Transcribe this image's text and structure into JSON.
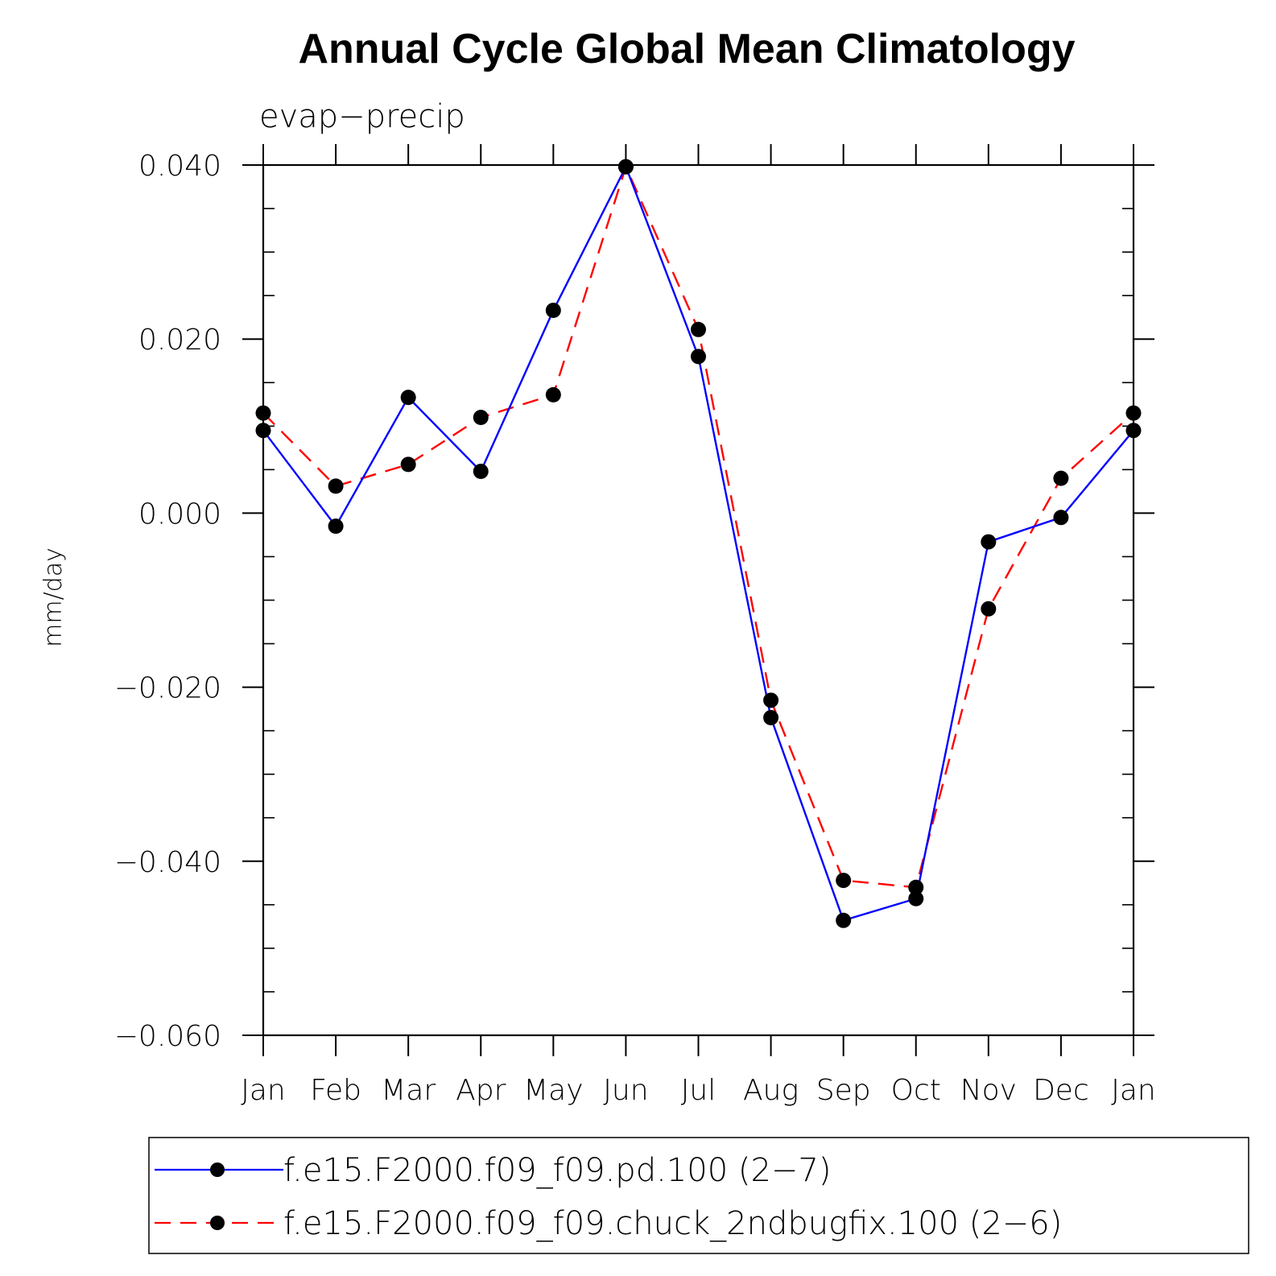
{
  "chart_data": {
    "type": "line",
    "title": "Annual Cycle Global Mean Climatology",
    "subtitle": "evap−precip",
    "ylabel": "mm/day",
    "xlabel": "",
    "categories": [
      "Jan",
      "Feb",
      "Mar",
      "Apr",
      "May",
      "Jun",
      "Jul",
      "Aug",
      "Sep",
      "Oct",
      "Nov",
      "Dec",
      "Jan"
    ],
    "ylim": [
      -0.06,
      0.04
    ],
    "yticks": [
      0.04,
      0.02,
      0.0,
      -0.02,
      -0.04,
      -0.06
    ],
    "ytick_labels": [
      "0.040",
      "0.020",
      "0.000",
      "−0.020",
      "−0.040",
      "−0.060"
    ],
    "series": [
      {
        "name": "f.e15.F2000.f09_f09.pd.100 (2−7)",
        "color": "#0000ff",
        "dash": "solid",
        "values": [
          0.0095,
          -0.0015,
          0.0133,
          0.0048,
          0.0233,
          0.0398,
          0.018,
          -0.0235,
          -0.0468,
          -0.0443,
          -0.0033,
          -0.0005,
          0.0095
        ]
      },
      {
        "name": "f.e15.F2000.f09_f09.chuck_2ndbugfix.100 (2−6)",
        "color": "#ff0000",
        "dash": "dashed",
        "values": [
          0.0115,
          0.0031,
          0.0056,
          0.011,
          0.0136,
          0.0398,
          0.0211,
          -0.0215,
          -0.0422,
          -0.043,
          -0.011,
          0.004,
          0.0115
        ]
      }
    ],
    "grid": false,
    "legend_position": "bottom"
  }
}
